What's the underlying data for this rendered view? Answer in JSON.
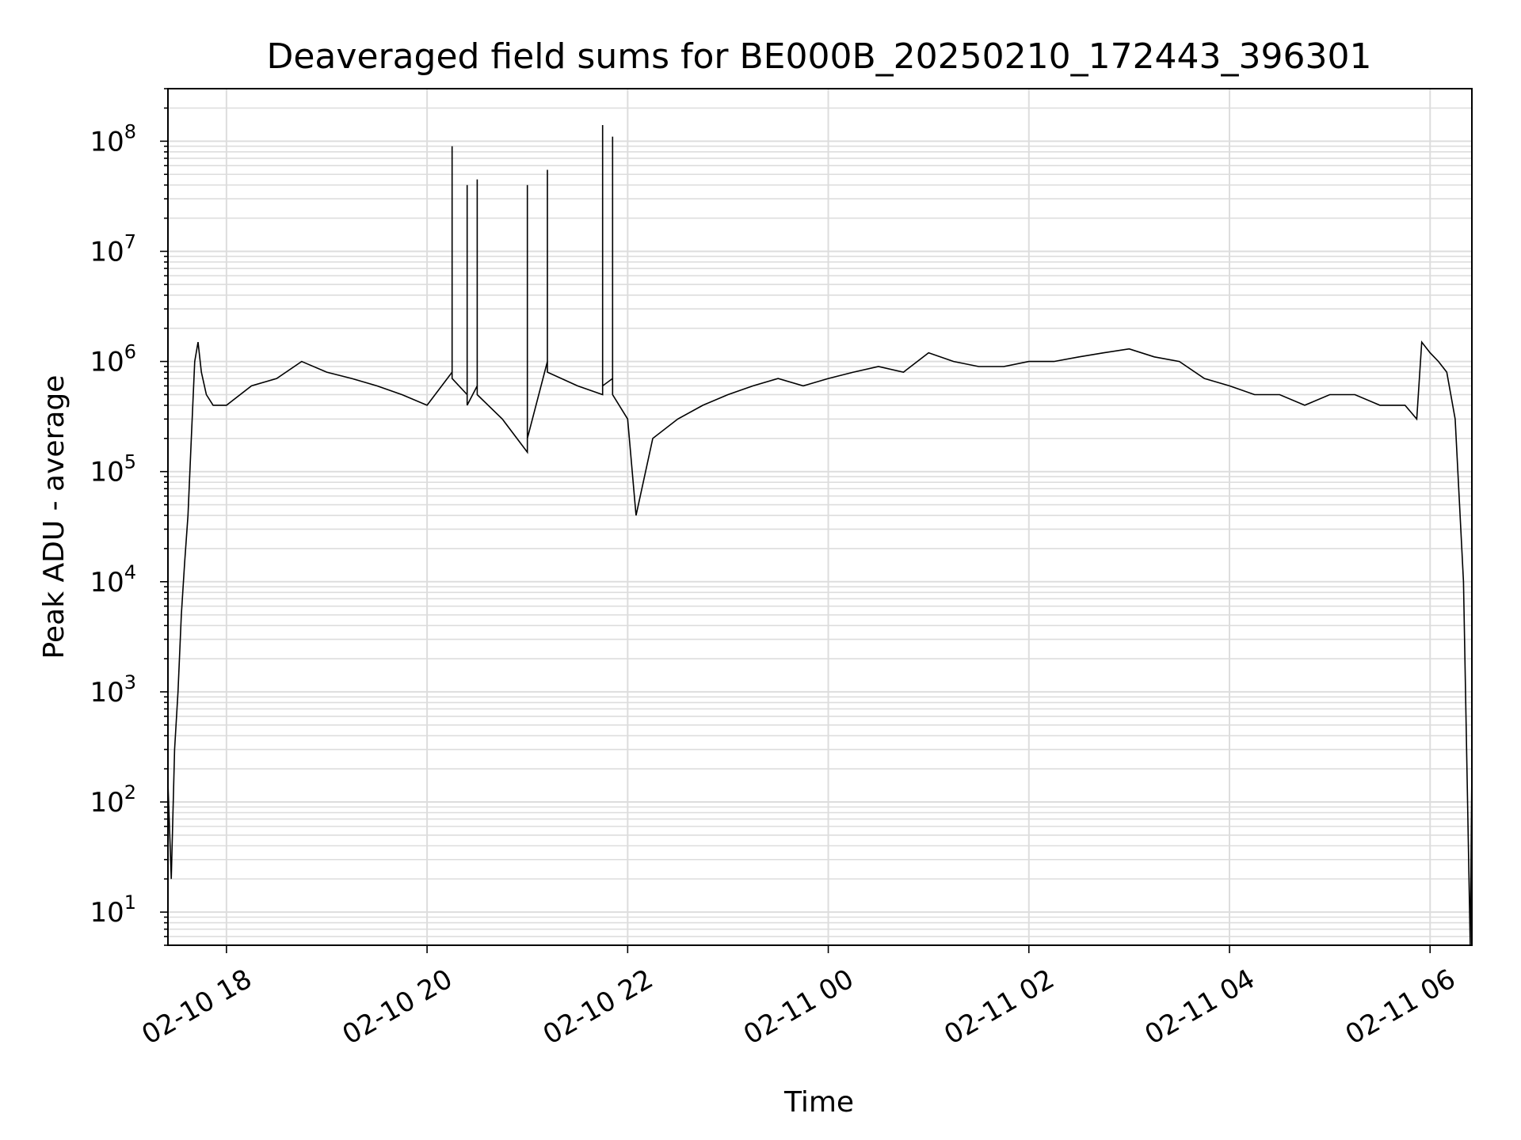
{
  "chart_data": {
    "type": "line",
    "title": "Deaveraged field sums for BE000B_20250210_172443_396301",
    "xlabel": "Time",
    "ylabel": "Peak ADU - average",
    "yscale": "log",
    "xlim": [
      "2025-02-10 17:25",
      "2025-02-11 06:25"
    ],
    "ylim": [
      5,
      300000000.0
    ],
    "x_ticks": [
      "02-10 18",
      "02-10 20",
      "02-10 22",
      "02-11 00",
      "02-11 02",
      "02-11 04",
      "02-11 06"
    ],
    "y_ticks": [
      "10^1",
      "10^2",
      "10^3",
      "10^4",
      "10^5",
      "10^6",
      "10^7",
      "10^8"
    ],
    "grid": true,
    "line_color": "#000000",
    "series": [
      {
        "x": [
          "2025-02-10 17:25",
          "2025-02-10 17:27",
          "2025-02-10 17:29",
          "2025-02-10 17:31",
          "2025-02-10 17:33",
          "2025-02-10 17:35",
          "2025-02-10 17:37",
          "2025-02-10 17:39",
          "2025-02-10 17:41",
          "2025-02-10 17:43",
          "2025-02-10 17:45",
          "2025-02-10 17:48",
          "2025-02-10 17:52",
          "2025-02-10 18:00",
          "2025-02-10 18:15",
          "2025-02-10 18:30",
          "2025-02-10 18:45",
          "2025-02-10 19:00",
          "2025-02-10 19:15",
          "2025-02-10 19:30",
          "2025-02-10 19:45",
          "2025-02-10 20:00",
          "2025-02-10 20:15",
          "2025-02-10 20:15",
          "2025-02-10 20:15",
          "2025-02-10 20:24",
          "2025-02-10 20:24",
          "2025-02-10 20:24",
          "2025-02-10 20:30",
          "2025-02-10 20:30",
          "2025-02-10 20:30",
          "2025-02-10 20:45",
          "2025-02-10 21:00",
          "2025-02-10 21:00",
          "2025-02-10 21:00",
          "2025-02-10 21:12",
          "2025-02-10 21:12",
          "2025-02-10 21:12",
          "2025-02-10 21:30",
          "2025-02-10 21:45",
          "2025-02-10 21:45",
          "2025-02-10 21:45",
          "2025-02-10 21:51",
          "2025-02-10 21:51",
          "2025-02-10 21:51",
          "2025-02-10 22:00",
          "2025-02-10 22:05",
          "2025-02-10 22:15",
          "2025-02-10 22:30",
          "2025-02-10 22:45",
          "2025-02-10 23:00",
          "2025-02-10 23:15",
          "2025-02-10 23:30",
          "2025-02-10 23:45",
          "2025-02-11 00:00",
          "2025-02-11 00:15",
          "2025-02-11 00:30",
          "2025-02-11 00:45",
          "2025-02-11 01:00",
          "2025-02-11 01:15",
          "2025-02-11 01:30",
          "2025-02-11 01:45",
          "2025-02-11 02:00",
          "2025-02-11 02:15",
          "2025-02-11 02:30",
          "2025-02-11 02:45",
          "2025-02-11 03:00",
          "2025-02-11 03:15",
          "2025-02-11 03:30",
          "2025-02-11 03:45",
          "2025-02-11 04:00",
          "2025-02-11 04:15",
          "2025-02-11 04:30",
          "2025-02-11 04:45",
          "2025-02-11 05:00",
          "2025-02-11 05:15",
          "2025-02-11 05:30",
          "2025-02-11 05:45",
          "2025-02-11 05:52",
          "2025-02-11 05:55",
          "2025-02-11 06:00",
          "2025-02-11 06:05",
          "2025-02-11 06:10",
          "2025-02-11 06:15",
          "2025-02-11 06:20",
          "2025-02-11 06:24",
          "2025-02-11 06:25"
        ],
        "y": [
          150,
          20,
          300,
          1000,
          5000,
          15000,
          40000,
          200000,
          1000000,
          1500000,
          800000,
          500000,
          400000,
          400000,
          600000,
          700000,
          1000000,
          800000,
          700000,
          600000,
          500000,
          400000,
          800000,
          90000000,
          700000,
          500000,
          40000000,
          400000,
          600000,
          45000000,
          500000,
          300000,
          150000,
          40000000,
          200000,
          1000000,
          55000000,
          800000,
          600000,
          500000,
          140000000,
          600000,
          700000,
          110000000,
          500000,
          300000,
          40000,
          200000,
          300000,
          400000,
          500000,
          600000,
          700000,
          600000,
          700000,
          800000,
          900000,
          800000,
          1200000,
          1000000,
          900000,
          900000,
          1000000,
          1000000,
          1100000,
          1200000,
          1300000,
          1100000,
          1000000,
          700000,
          600000,
          500000,
          500000,
          400000,
          500000,
          500000,
          400000,
          400000,
          300000,
          1500000,
          1200000,
          1000000,
          800000,
          300000,
          10000,
          5,
          200
        ]
      }
    ]
  }
}
